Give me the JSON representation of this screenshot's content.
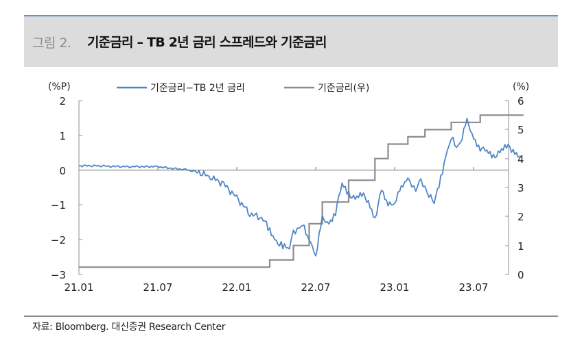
{
  "header": {
    "figure_number": "그림 2.",
    "title": "기준금리 – TB 2년 금리 스프레드와 기준금리"
  },
  "footer": {
    "source": "자료: Bloomberg. 대신증권 Research Center"
  },
  "colors": {
    "spread_line": "#4f86c6",
    "policy_rate_line": "#8c8c8c",
    "title_bar_bg": "#dcdcdc",
    "title_bar_border": "#6d8fc0"
  },
  "chart_data": {
    "type": "line",
    "title": "기준금리 – TB 2년 금리 스프레드와 기준금리",
    "x_tick_labels": [
      "21.01",
      "21.07",
      "22.01",
      "22.07",
      "23.01",
      "23.07"
    ],
    "left_axis": {
      "unit_label": "(%P)",
      "ticks": [
        "2",
        "1",
        "0",
        "−1",
        "−2",
        "−3"
      ],
      "range": [
        -3,
        2
      ]
    },
    "right_axis": {
      "unit_label": "(%)",
      "ticks": [
        "6",
        "5",
        "4",
        "3",
        "2",
        "1",
        "0"
      ],
      "range": [
        0,
        6
      ]
    },
    "legend": [
      {
        "label": "기준금리−TB 2년 금리",
        "axis": "left"
      },
      {
        "label": "기준금리(우)",
        "axis": "right"
      }
    ],
    "legend_position": "top",
    "series": [
      {
        "name": "기준금리−TB 2년 금리",
        "axis": "left",
        "x_months": [
          0,
          1,
          2,
          3,
          4,
          5,
          6,
          7,
          8,
          9,
          10,
          11,
          12,
          13,
          14,
          14.5,
          15,
          15.5,
          16,
          16.3,
          16.6,
          17,
          17.5,
          18,
          18.5,
          19,
          19.5,
          20,
          20.5,
          21,
          21.5,
          22,
          22.5,
          23,
          23.5,
          24,
          24.5,
          25,
          25.3,
          25.6,
          26,
          26.3,
          26.6,
          27,
          27.5,
          28,
          28.3,
          28.7,
          29,
          29.5,
          30,
          30.5,
          31,
          31.5,
          32,
          32.5,
          33,
          33.5
        ],
        "values": [
          0.12,
          0.13,
          0.11,
          0.1,
          0.1,
          0.1,
          0.1,
          0.05,
          0.02,
          -0.05,
          -0.2,
          -0.4,
          -0.8,
          -1.25,
          -1.4,
          -1.75,
          -2.05,
          -2.2,
          -2.25,
          -1.75,
          -1.7,
          -1.6,
          -1.95,
          -2.45,
          -1.4,
          -1.55,
          -1.2,
          -0.4,
          -0.7,
          -0.8,
          -0.7,
          -0.9,
          -1.4,
          -0.6,
          -1.0,
          -0.9,
          -0.5,
          -0.3,
          -0.4,
          -0.55,
          -0.35,
          -0.5,
          -0.7,
          -0.95,
          -0.2,
          0.55,
          0.9,
          0.7,
          0.8,
          1.4,
          0.9,
          0.65,
          0.55,
          0.35,
          0.55,
          0.7,
          0.55,
          0.4
        ]
      },
      {
        "name": "기준금리(우)",
        "axis": "right",
        "x_months": [
          0,
          14.5,
          16.3,
          17.5,
          18.5,
          20.5,
          22.5,
          23.5,
          25,
          26.3,
          28.3,
          30.5,
          33.8
        ],
        "values": [
          0.25,
          0.5,
          1.0,
          1.75,
          2.5,
          3.25,
          4.0,
          4.5,
          4.75,
          5.0,
          5.25,
          5.5,
          5.5
        ]
      }
    ]
  }
}
